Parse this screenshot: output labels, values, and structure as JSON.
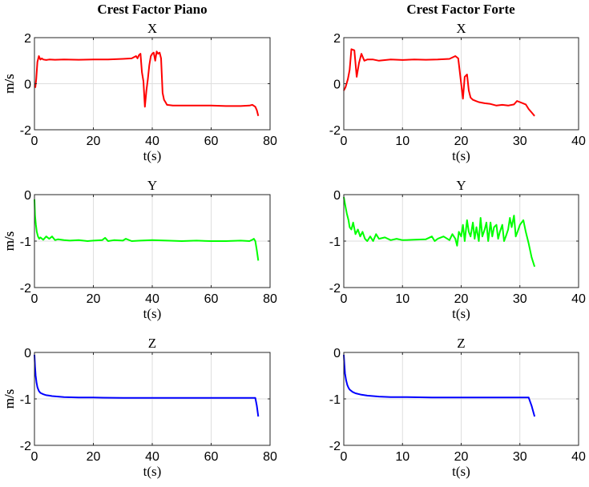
{
  "chart_data": [
    {
      "type": "line",
      "column_title": "Crest Factor Piano",
      "title": "X",
      "xlabel": "t(s)",
      "ylabel": "m/s",
      "xlim": [
        0,
        80
      ],
      "ylim": [
        -2,
        2
      ],
      "xticks": [
        0,
        20,
        40,
        60,
        80
      ],
      "yticks": [
        -2,
        0,
        2
      ],
      "grid": true,
      "series": [
        {
          "color": "#ff0000",
          "x": [
            0.0,
            0.3,
            0.6,
            1.0,
            1.5,
            2.0,
            2.5,
            3.0,
            4.0,
            5.0,
            7.0,
            10.0,
            15.0,
            20.0,
            25.0,
            30.0,
            33.0,
            34.5,
            35.0,
            35.5,
            36.0,
            36.5,
            37.0,
            37.5,
            38.0,
            38.5,
            39.0,
            39.5,
            40.0,
            40.5,
            41.0,
            41.5,
            42.0,
            42.5,
            43.0,
            43.5,
            44.0,
            44.5,
            45.0,
            47.0,
            50.0,
            55.0,
            60.0,
            65.0,
            70.0,
            73.0,
            74.0,
            75.0,
            75.5,
            76.0
          ],
          "y": [
            -0.1,
            -0.15,
            0.2,
            0.95,
            1.2,
            1.05,
            1.1,
            1.05,
            1.03,
            1.05,
            1.04,
            1.05,
            1.04,
            1.05,
            1.05,
            1.08,
            1.1,
            1.2,
            1.1,
            1.25,
            1.3,
            0.5,
            0.1,
            -1.0,
            -0.3,
            0.2,
            0.8,
            1.2,
            1.3,
            1.35,
            1.0,
            1.4,
            1.3,
            1.35,
            1.1,
            -0.4,
            -0.7,
            -0.8,
            -0.92,
            -0.95,
            -0.95,
            -0.95,
            -0.95,
            -0.97,
            -0.97,
            -0.95,
            -0.92,
            -1.0,
            -1.15,
            -1.4
          ]
        }
      ]
    },
    {
      "type": "line",
      "column_title": "Crest Factor Forte",
      "title": "X",
      "xlabel": "t(s)",
      "ylabel": "m/s",
      "xlim": [
        0,
        40
      ],
      "ylim": [
        -2,
        2
      ],
      "xticks": [
        0,
        10,
        20,
        30,
        40
      ],
      "yticks": [
        -2,
        0,
        2
      ],
      "grid": true,
      "series": [
        {
          "color": "#ff0000",
          "x": [
            0.0,
            0.3,
            0.7,
            1.0,
            1.3,
            1.8,
            2.2,
            2.6,
            3.0,
            3.5,
            4.0,
            5.0,
            6.0,
            8.0,
            10.0,
            12.0,
            14.0,
            16.0,
            18.0,
            19.0,
            19.5,
            20.0,
            20.3,
            20.6,
            21.0,
            21.3,
            21.6,
            22.0,
            22.5,
            23.0,
            24.0,
            25.0,
            26.0,
            27.0,
            28.0,
            29.0,
            29.5,
            30.0,
            31.0,
            31.5,
            32.0,
            32.5
          ],
          "y": [
            -0.3,
            -0.15,
            0.2,
            0.6,
            1.5,
            1.45,
            0.3,
            0.9,
            1.3,
            1.0,
            1.05,
            1.05,
            1.0,
            1.05,
            1.03,
            1.05,
            1.04,
            1.05,
            1.08,
            1.2,
            1.1,
            0.0,
            -0.65,
            0.3,
            0.4,
            -0.3,
            -0.6,
            -0.7,
            -0.75,
            -0.8,
            -0.85,
            -0.88,
            -0.95,
            -0.92,
            -0.95,
            -0.9,
            -0.75,
            -0.8,
            -0.9,
            -1.1,
            -1.25,
            -1.4
          ]
        }
      ]
    },
    {
      "type": "line",
      "title": "Y",
      "xlabel": "t(s)",
      "ylabel": "m/s",
      "xlim": [
        0,
        80
      ],
      "ylim": [
        -2,
        0
      ],
      "xticks": [
        0,
        20,
        40,
        60,
        80
      ],
      "yticks": [
        -2,
        -1,
        0
      ],
      "grid": true,
      "series": [
        {
          "color": "#00ff00",
          "x": [
            0.0,
            0.2,
            0.5,
            0.8,
            1.2,
            1.6,
            2.0,
            3.0,
            4.0,
            5.0,
            6.0,
            7.0,
            8.0,
            10.0,
            12.0,
            15.0,
            18.0,
            20.0,
            23.0,
            24.0,
            25.0,
            27.0,
            30.0,
            31.0,
            33.0,
            36.0,
            40.0,
            45.0,
            50.0,
            55.0,
            60.0,
            65.0,
            70.0,
            73.0,
            74.0,
            74.5,
            75.0,
            75.5,
            76.0
          ],
          "y": [
            -0.1,
            -0.45,
            -0.65,
            -0.8,
            -0.9,
            -0.95,
            -0.92,
            -0.97,
            -0.9,
            -0.95,
            -0.9,
            -0.98,
            -0.96,
            -0.98,
            -0.99,
            -0.98,
            -1.0,
            -0.99,
            -0.98,
            -0.93,
            -1.0,
            -0.98,
            -0.99,
            -0.95,
            -1.0,
            -0.99,
            -0.98,
            -0.99,
            -1.0,
            -0.99,
            -1.0,
            -1.0,
            -0.99,
            -1.0,
            -0.97,
            -0.95,
            -1.0,
            -1.2,
            -1.42
          ]
        }
      ]
    },
    {
      "type": "line",
      "title": "Y",
      "xlabel": "t(s)",
      "ylabel": "m/s",
      "xlim": [
        0,
        40
      ],
      "ylim": [
        -2,
        0
      ],
      "xticks": [
        0,
        10,
        20,
        30,
        40
      ],
      "yticks": [
        -2,
        -1,
        0
      ],
      "grid": true,
      "series": [
        {
          "color": "#00ff00",
          "x": [
            0.0,
            0.2,
            0.5,
            0.8,
            1.0,
            1.3,
            1.6,
            2.0,
            2.4,
            2.8,
            3.2,
            3.6,
            4.0,
            4.5,
            5.0,
            5.5,
            6.0,
            7.0,
            8.0,
            9.0,
            10.0,
            12.0,
            14.0,
            15.0,
            15.5,
            16.0,
            17.0,
            18.0,
            18.5,
            19.0,
            19.3,
            19.6,
            20.0,
            20.3,
            20.6,
            21.0,
            21.3,
            21.6,
            22.0,
            22.3,
            22.6,
            23.0,
            23.3,
            23.6,
            24.0,
            24.3,
            24.6,
            25.0,
            25.3,
            25.6,
            26.0,
            26.3,
            26.6,
            27.0,
            27.3,
            27.6,
            28.0,
            28.3,
            28.6,
            29.0,
            29.3,
            29.6,
            30.0,
            30.3,
            30.6,
            31.0,
            31.5,
            32.0,
            32.5
          ],
          "y": [
            -0.05,
            -0.2,
            -0.4,
            -0.55,
            -0.7,
            -0.75,
            -0.6,
            -0.85,
            -0.75,
            -0.9,
            -0.8,
            -0.95,
            -1.0,
            -0.9,
            -1.0,
            -0.85,
            -0.95,
            -0.92,
            -0.98,
            -0.95,
            -0.98,
            -0.97,
            -0.96,
            -0.9,
            -1.0,
            -0.95,
            -0.9,
            -0.98,
            -0.85,
            -0.95,
            -1.1,
            -0.8,
            -0.9,
            -0.65,
            -1.0,
            -0.55,
            -0.8,
            -0.9,
            -0.6,
            -0.95,
            -0.7,
            -1.0,
            -0.5,
            -0.9,
            -0.75,
            -0.6,
            -1.0,
            -0.6,
            -0.9,
            -0.7,
            -0.65,
            -0.95,
            -0.8,
            -0.65,
            -1.0,
            -0.9,
            -0.75,
            -0.5,
            -0.7,
            -0.45,
            -0.9,
            -0.8,
            -0.65,
            -0.6,
            -0.55,
            -0.8,
            -1.05,
            -1.35,
            -1.55
          ]
        }
      ]
    },
    {
      "type": "line",
      "title": "Z",
      "xlabel": "t(s)",
      "ylabel": "m/s",
      "xlim": [
        0,
        80
      ],
      "ylim": [
        -2,
        0
      ],
      "xticks": [
        0,
        20,
        40,
        60,
        80
      ],
      "yticks": [
        -2,
        -1,
        0
      ],
      "grid": true,
      "series": [
        {
          "color": "#0000ff",
          "x": [
            0.0,
            0.2,
            0.4,
            0.7,
            1.0,
            1.5,
            2.0,
            3.0,
            4.0,
            5.0,
            6.0,
            8.0,
            10.0,
            15.0,
            20.0,
            30.0,
            40.0,
            50.0,
            60.0,
            70.0,
            74.0,
            75.0,
            75.5,
            76.0
          ],
          "y": [
            -0.05,
            -0.3,
            -0.5,
            -0.65,
            -0.75,
            -0.83,
            -0.87,
            -0.9,
            -0.92,
            -0.93,
            -0.94,
            -0.95,
            -0.96,
            -0.97,
            -0.97,
            -0.98,
            -0.98,
            -0.98,
            -0.98,
            -0.98,
            -0.98,
            -0.98,
            -1.15,
            -1.38
          ]
        }
      ]
    },
    {
      "type": "line",
      "title": "Z",
      "xlabel": "t(s)",
      "ylabel": "m/s",
      "xlim": [
        0,
        40
      ],
      "ylim": [
        -2,
        0
      ],
      "xticks": [
        0,
        10,
        20,
        30,
        40
      ],
      "yticks": [
        -2,
        -1,
        0
      ],
      "grid": true,
      "series": [
        {
          "color": "#0000ff",
          "x": [
            0.0,
            0.1,
            0.2,
            0.4,
            0.6,
            0.8,
            1.0,
            1.5,
            2.0,
            3.0,
            4.0,
            5.0,
            6.0,
            8.0,
            10.0,
            15.0,
            20.0,
            25.0,
            30.0,
            31.5,
            32.0,
            32.5
          ],
          "y": [
            -0.05,
            -0.25,
            -0.45,
            -0.6,
            -0.7,
            -0.76,
            -0.8,
            -0.85,
            -0.88,
            -0.91,
            -0.93,
            -0.94,
            -0.95,
            -0.96,
            -0.96,
            -0.97,
            -0.97,
            -0.97,
            -0.97,
            -0.97,
            -1.15,
            -1.38
          ]
        }
      ]
    }
  ]
}
